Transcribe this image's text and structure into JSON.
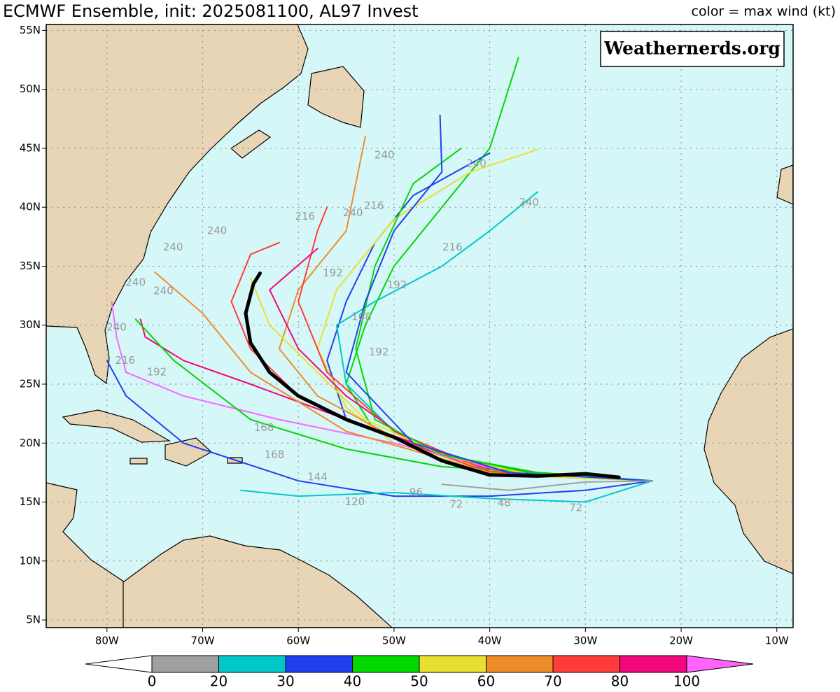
{
  "header": {
    "title": "ECMWF Ensemble, init: 2025081100, AL97 Invest",
    "legend_title": "color = max wind (kt)",
    "credit": "Weathernerds.org"
  },
  "map": {
    "lon_range": [
      -86.35,
      -8.3
    ],
    "lat_range": [
      4.35,
      55.5
    ],
    "lat_ticks": [
      {
        "value": 5,
        "label": "5N"
      },
      {
        "value": 10,
        "label": "10N"
      },
      {
        "value": 15,
        "label": "15N"
      },
      {
        "value": 20,
        "label": "20N"
      },
      {
        "value": 25,
        "label": "25N"
      },
      {
        "value": 30,
        "label": "30N"
      },
      {
        "value": 35,
        "label": "35N"
      },
      {
        "value": 40,
        "label": "40N"
      },
      {
        "value": 45,
        "label": "45N"
      },
      {
        "value": 50,
        "label": "50N"
      },
      {
        "value": 55,
        "label": "55N"
      }
    ],
    "lon_ticks": [
      {
        "value": -80,
        "label": "80W"
      },
      {
        "value": -70,
        "label": "70W"
      },
      {
        "value": -60,
        "label": "60W"
      },
      {
        "value": -50,
        "label": "50W"
      },
      {
        "value": -40,
        "label": "40W"
      },
      {
        "value": -30,
        "label": "30W"
      },
      {
        "value": -20,
        "label": "20W"
      },
      {
        "value": -10,
        "label": "10W"
      }
    ]
  },
  "tracks": [
    {
      "color": "#00d800",
      "lon": [
        -23,
        -35,
        -45,
        -52,
        -55,
        -53,
        -50,
        -45,
        -40,
        -37
      ],
      "lat": [
        16.8,
        17.5,
        19,
        21,
        25,
        30,
        35,
        40,
        45,
        52.7
      ]
    },
    {
      "color": "#2040f0",
      "lon": [
        -23,
        -35,
        -45,
        -55,
        -57,
        -55,
        -52,
        -48,
        -40
      ],
      "lat": [
        16.8,
        17.3,
        19,
        22,
        27,
        32,
        37,
        41,
        44.6
      ]
    },
    {
      "color": "#00c8c8",
      "lon": [
        -23,
        -40,
        -50,
        -55,
        -56,
        -52,
        -45,
        -40,
        -35
      ],
      "lat": [
        16.8,
        17.5,
        21,
        25,
        30,
        32,
        35,
        38,
        41.3
      ]
    },
    {
      "color": "#e8e030",
      "lon": [
        -23,
        -38,
        -50,
        -55,
        -58,
        -56,
        -50,
        -42,
        -35
      ],
      "lat": [
        16.8,
        17.3,
        20,
        23,
        28,
        33,
        39,
        43,
        44.9
      ]
    },
    {
      "color": "#f08c28",
      "lon": [
        -23,
        -38,
        -50,
        -58,
        -62,
        -60,
        -55,
        -53
      ],
      "lat": [
        16.8,
        17.3,
        20.5,
        24,
        28,
        33,
        38,
        46
      ]
    },
    {
      "color": "#ff3c3c",
      "lon": [
        -23,
        -40,
        -52,
        -60,
        -65,
        -67,
        -65,
        -62
      ],
      "lat": [
        16.8,
        17.5,
        21,
        24,
        28,
        32,
        36,
        37
      ]
    },
    {
      "color": "#f0087c",
      "lon": [
        -23,
        -40,
        -55,
        -65,
        -72,
        -76,
        -76.5
      ],
      "lat": [
        16.8,
        17.8,
        22,
        25,
        27,
        29,
        30.5
      ]
    },
    {
      "color": "#ff64ff",
      "lon": [
        -23,
        -38,
        -50,
        -62,
        -72,
        -78,
        -79,
        -79.5
      ],
      "lat": [
        16.8,
        17.5,
        20,
        22,
        24,
        26,
        29,
        32
      ]
    },
    {
      "color": "#2040f0",
      "lon": [
        -23,
        -30,
        -40,
        -50,
        -60,
        -72,
        -78,
        -80
      ],
      "lat": [
        16.8,
        16,
        15.5,
        15.5,
        16.8,
        20,
        24,
        27
      ]
    },
    {
      "color": "#00c8c8",
      "lon": [
        -23,
        -30,
        -40,
        -50,
        -60,
        -66
      ],
      "lat": [
        16.8,
        15,
        15.3,
        15.8,
        15.5,
        16
      ]
    },
    {
      "color": "#00d800",
      "lon": [
        -23,
        -35,
        -45,
        -55,
        -65,
        -73,
        -77
      ],
      "lat": [
        16.8,
        17.5,
        18,
        19.5,
        22,
        27,
        30.5
      ]
    },
    {
      "color": "#f08c28",
      "lon": [
        -23,
        -40,
        -55,
        -65,
        -70,
        -75
      ],
      "lat": [
        16.8,
        17.5,
        21,
        26,
        31,
        34.5
      ]
    },
    {
      "color": "#ff3c3c",
      "lon": [
        -23,
        -40,
        -50,
        -57,
        -60,
        -58,
        -57
      ],
      "lat": [
        16.8,
        17.6,
        21,
        26,
        32,
        38,
        40
      ]
    },
    {
      "color": "#f0087c",
      "lon": [
        -23,
        -38,
        -48,
        -55,
        -60,
        -63,
        -58
      ],
      "lat": [
        16.8,
        17.5,
        20,
        24,
        28,
        33,
        36.5
      ]
    },
    {
      "color": "#e8e030",
      "lon": [
        -23,
        -35,
        -45,
        -53,
        -58,
        -63,
        -65
      ],
      "lat": [
        16.8,
        17.2,
        19,
        22,
        26,
        30,
        34
      ]
    },
    {
      "color": "#00d800",
      "lon": [
        -23,
        -35,
        -45,
        -52,
        -54,
        -52,
        -48,
        -43
      ],
      "lat": [
        16.8,
        17.4,
        19,
        22,
        28,
        35,
        42,
        45
      ]
    },
    {
      "color": "#2040f0",
      "lon": [
        -23,
        -38,
        -48,
        -55,
        -53,
        -50,
        -45,
        -45.2
      ],
      "lat": [
        16.8,
        17.5,
        20,
        26,
        32,
        38,
        43,
        47.8
      ]
    },
    {
      "color": "#a0a0a0",
      "lon": [
        -23,
        -30,
        -38,
        -45
      ],
      "lat": [
        16.8,
        16.7,
        16,
        16.5
      ]
    }
  ],
  "mean_track": {
    "color": "#000000",
    "lon": [
      -26.5,
      -30,
      -35,
      -40,
      -45,
      -50,
      -55,
      -60,
      -63,
      -65,
      -65.5,
      -64.7,
      -64
    ],
    "lat": [
      17.1,
      17.4,
      17.2,
      17.3,
      18.5,
      20.5,
      22,
      24,
      26,
      28.5,
      31,
      33.5,
      34.4
    ]
  },
  "track_labels": [
    {
      "text": "240",
      "lon": -35.9,
      "lat": 40.4
    },
    {
      "text": "216",
      "lon": -43.9,
      "lat": 36.6
    },
    {
      "text": "192",
      "lon": -49.7,
      "lat": 33.4
    },
    {
      "text": "240",
      "lon": -41.4,
      "lat": 43.7
    },
    {
      "text": "240",
      "lon": -51,
      "lat": 44.4
    },
    {
      "text": "216",
      "lon": -52.1,
      "lat": 40.1
    },
    {
      "text": "240",
      "lon": -54.3,
      "lat": 39.5
    },
    {
      "text": "216",
      "lon": -59.3,
      "lat": 39.2
    },
    {
      "text": "240",
      "lon": -68.5,
      "lat": 38.0
    },
    {
      "text": "240",
      "lon": -73.1,
      "lat": 36.6
    },
    {
      "text": "240",
      "lon": -77.0,
      "lat": 33.6
    },
    {
      "text": "240",
      "lon": -74.1,
      "lat": 32.9
    },
    {
      "text": "240",
      "lon": -79.0,
      "lat": 29.8
    },
    {
      "text": "216",
      "lon": -78.1,
      "lat": 27.0
    },
    {
      "text": "192",
      "lon": -74.8,
      "lat": 26.0
    },
    {
      "text": "168",
      "lon": -63.6,
      "lat": 21.3
    },
    {
      "text": "168",
      "lon": -62.5,
      "lat": 19.0
    },
    {
      "text": "144",
      "lon": -58.0,
      "lat": 17.1
    },
    {
      "text": "120",
      "lon": -54.1,
      "lat": 15.0
    },
    {
      "text": "96",
      "lon": -47.7,
      "lat": 15.8
    },
    {
      "text": "72",
      "lon": -31.0,
      "lat": 14.5
    },
    {
      "text": "48",
      "lon": -38.5,
      "lat": 14.9
    },
    {
      "text": "72",
      "lon": -43.5,
      "lat": 14.8
    },
    {
      "text": "168",
      "lon": -53.4,
      "lat": 30.7
    },
    {
      "text": "192",
      "lon": -51.6,
      "lat": 27.7
    },
    {
      "text": "192",
      "lon": -56.4,
      "lat": 34.4
    }
  ],
  "colorbar": {
    "bounds": [
      0,
      20,
      30,
      40,
      50,
      60,
      70,
      80,
      100
    ],
    "colors": [
      "#ffffff",
      "#a0a0a0",
      "#00c8c8",
      "#2040f0",
      "#00d800",
      "#e8e030",
      "#f08c28",
      "#ff3c3c",
      "#f0087c",
      "#ff64ff"
    ]
  }
}
